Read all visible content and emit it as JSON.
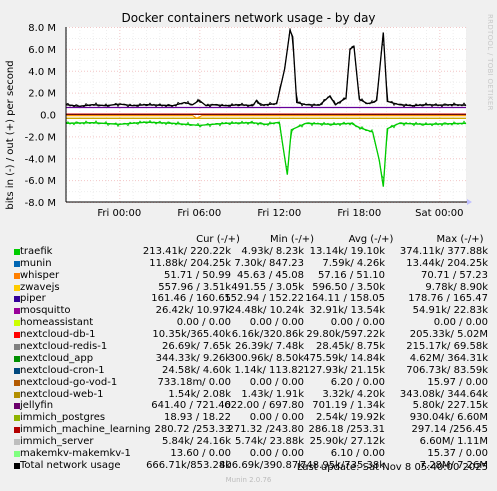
{
  "title": "Docker containers network usage - by day",
  "watermark": "RRDTOOL / TOBI OETIKER",
  "ylabel": "bits in (-) / out (+) per second",
  "chart_data": {
    "type": "line",
    "title": "Docker containers network usage - by day",
    "ylabel": "bits in (-) / out (+) per second",
    "ylim": [
      -8000000,
      8000000
    ],
    "y_ticks": [
      -8000000,
      -6000000,
      -4000000,
      -2000000,
      0,
      2000000,
      4000000,
      6000000,
      8000000
    ],
    "y_tick_labels": [
      "-8.0 M",
      "-6.0 M",
      "-4.0 M",
      "-2.0 M",
      "0.0",
      "2.0 M",
      "4.0 M",
      "6.0 M",
      "8.0 M"
    ],
    "x_range_hours": [
      4,
      34
    ],
    "x_ticks": [
      8,
      14,
      20,
      26,
      32
    ],
    "x_tick_labels": [
      "Fri 00:00",
      "Fri 06:00",
      "Fri 12:00",
      "Fri 18:00",
      "Sat 00:00"
    ],
    "grid": true,
    "series": [
      {
        "name": "Total network usage",
        "color": "#000000",
        "direction": "out",
        "points": [
          [
            4,
            0.9
          ],
          [
            5,
            0.75
          ],
          [
            6,
            0.9
          ],
          [
            7,
            0.8
          ],
          [
            8,
            0.95
          ],
          [
            9,
            0.8
          ],
          [
            10,
            0.9
          ],
          [
            11,
            0.85
          ],
          [
            12,
            0.8
          ],
          [
            12.9,
            1.1
          ],
          [
            13.5,
            0.9
          ],
          [
            14,
            1.3
          ],
          [
            14.5,
            0.8
          ],
          [
            15,
            0.9
          ],
          [
            16,
            0.8
          ],
          [
            17,
            0.9
          ],
          [
            18,
            0.8
          ],
          [
            18.3,
            1.3
          ],
          [
            18.6,
            0.85
          ],
          [
            19,
            0.9
          ],
          [
            19.8,
            1.0
          ],
          [
            20.4,
            4.2
          ],
          [
            20.8,
            7.7
          ],
          [
            21,
            7.1
          ],
          [
            21.3,
            1.1
          ],
          [
            22,
            0.9
          ],
          [
            23,
            0.85
          ],
          [
            23.8,
            1.7
          ],
          [
            24.2,
            0.9
          ],
          [
            25,
            1.5
          ],
          [
            25.3,
            6.0
          ],
          [
            25.6,
            6.2
          ],
          [
            26,
            1.4
          ],
          [
            26.6,
            1.0
          ],
          [
            27,
            1.1
          ],
          [
            27.3,
            1.3
          ],
          [
            27.8,
            7.5
          ],
          [
            28.1,
            1.2
          ],
          [
            29,
            0.9
          ],
          [
            30,
            0.8
          ],
          [
            31,
            0.9
          ],
          [
            32,
            0.85
          ],
          [
            33,
            0.9
          ],
          [
            34,
            0.85
          ]
        ]
      },
      {
        "name": "jellyfin",
        "color": "#660099",
        "direction": "out",
        "points": [
          [
            4,
            0.64
          ],
          [
            34,
            0.64
          ]
        ]
      },
      {
        "name": "nextcloud-db-1",
        "color": "#cc0000",
        "direction": "out",
        "points": [
          [
            4,
            0.03
          ],
          [
            34,
            0.03
          ]
        ]
      },
      {
        "name": "nextcloud_app",
        "color": "#00cc00",
        "direction": "in",
        "points": [
          [
            4,
            -0.8
          ],
          [
            6,
            -0.75
          ],
          [
            8,
            -0.9
          ],
          [
            10,
            -0.7
          ],
          [
            12,
            -0.8
          ],
          [
            14,
            -1.0
          ],
          [
            16,
            -0.8
          ],
          [
            18,
            -0.75
          ],
          [
            19,
            -0.9
          ],
          [
            20,
            -0.7
          ],
          [
            20.6,
            -5.5
          ],
          [
            20.9,
            -1.4
          ],
          [
            22,
            -0.8
          ],
          [
            24,
            -0.9
          ],
          [
            25.4,
            -0.8
          ],
          [
            26,
            -1.2
          ],
          [
            27,
            -1.6
          ],
          [
            27.5,
            -4.2
          ],
          [
            27.8,
            -6.6
          ],
          [
            28.1,
            -1.3
          ],
          [
            29,
            -0.8
          ],
          [
            31,
            -0.9
          ],
          [
            34,
            -0.8
          ]
        ]
      },
      {
        "name": "whisper",
        "color": "#ccaa00",
        "direction": "in",
        "points": [
          [
            4,
            -0.35
          ],
          [
            34,
            -0.35
          ]
        ]
      },
      {
        "name": "zwavejs",
        "color": "#ff9900",
        "direction": "in",
        "points": [
          [
            4,
            -0.1
          ],
          [
            13.5,
            -0.1
          ],
          [
            13.8,
            -0.35
          ],
          [
            14.2,
            -0.1
          ],
          [
            34,
            -0.1
          ]
        ]
      }
    ]
  },
  "legend": {
    "headers": [
      "Cur (-/+)",
      "Min (-/+)",
      "Avg (-/+)",
      "Max (-/+)"
    ],
    "rows": [
      {
        "name": "traefik",
        "color": "#00cc00",
        "cur": "213.41k/ 220.22k",
        "min": "4.93k/   8.23k",
        "avg": "13.14k/  19.10k",
        "max": "374.11k/ 377.88k"
      },
      {
        "name": "munin",
        "color": "#0066b3",
        "cur": "11.88k/ 204.25k",
        "min": "7.30k/ 847.23",
        "avg": "7.59k/   4.26k",
        "max": "13.44k/ 204.25k"
      },
      {
        "name": "whisper",
        "color": "#ff8000",
        "cur": "51.71 /  50.99",
        "min": "45.63 /  45.08",
        "avg": "57.16 /  51.10",
        "max": "70.71 /  57.23"
      },
      {
        "name": "zwavejs",
        "color": "#ffcc00",
        "cur": "557.96 /   3.51k",
        "min": "491.55 /   3.05k",
        "avg": "596.50 /   3.50k",
        "max": "9.78k/   8.90k"
      },
      {
        "name": "piper",
        "color": "#330099",
        "cur": "161.46 / 160.65",
        "min": "152.94 / 152.22",
        "avg": "164.11 / 158.05",
        "max": "178.76 / 165.47"
      },
      {
        "name": "mosquitto",
        "color": "#990099",
        "cur": "26.42k/  10.97k",
        "min": "24.48k/  10.24k",
        "avg": "32.91k/  13.54k",
        "max": "54.91k/  22.83k"
      },
      {
        "name": "homeassistant",
        "color": "#ccff00",
        "cur": "0.00 /   0.00",
        "min": "0.00 /   0.00",
        "avg": "0.00 /   0.00",
        "max": "0.00 /   0.00"
      },
      {
        "name": "nextcloud-db-1",
        "color": "#ff0000",
        "cur": "10.35k/365.40k",
        "min": "6.16k/320.86k",
        "avg": "29.80k/597.22k",
        "max": "205.33k/  5.02M"
      },
      {
        "name": "nextcloud-redis-1",
        "color": "#808080",
        "cur": "26.69k/   7.65k",
        "min": "26.39k/   7.48k",
        "avg": "28.45k/   8.75k",
        "max": "215.17k/  69.58k"
      },
      {
        "name": "nextcloud_app",
        "color": "#008f00",
        "cur": "344.33k/   9.26k",
        "min": "300.96k/   8.50k",
        "avg": "475.59k/  14.84k",
        "max": "4.62M/ 364.31k"
      },
      {
        "name": "nextcloud-cron-1",
        "color": "#00487d",
        "cur": "24.58k/   4.60k",
        "min": "1.14k/ 113.82",
        "avg": "127.93k/  21.15k",
        "max": "706.73k/  83.59k"
      },
      {
        "name": "nextcloud-go-vod-1",
        "color": "#b35a00",
        "cur": "733.18m/   0.00",
        "min": "0.00 /   0.00",
        "avg": "6.20 /   0.00",
        "max": "15.97 /   0.00"
      },
      {
        "name": "nextcloud-web-1",
        "color": "#b38f00",
        "cur": "1.54k/   2.08k",
        "min": "1.43k/   1.91k",
        "avg": "3.32k/   4.20k",
        "max": "343.08k/ 344.64k"
      },
      {
        "name": "jellyfin",
        "color": "#6b006b",
        "cur": "641.40 / 721.40",
        "min": "622.00 / 697.80",
        "avg": "701.19 /   1.34k",
        "max": "5.80k/ 227.15k"
      },
      {
        "name": "immich_postgres",
        "color": "#8fb300",
        "cur": "18.93 /  18.22",
        "min": "0.00 /   0.00",
        "avg": "2.54k/  19.92k",
        "max": "930.04k/   6.60M"
      },
      {
        "name": "immich_machine_learning",
        "color": "#b30000",
        "cur": "280.72 /253.33",
        "min": "271.32 /243.80",
        "avg": "286.18 /253.31",
        "max": "297.14 /256.45"
      },
      {
        "name": "immich_server",
        "color": "#bebebe",
        "cur": "5.84k/  24.16k",
        "min": "5.74k/  23.88k",
        "avg": "25.90k/  27.12k",
        "max": "6.60M/   1.11M"
      },
      {
        "name": "makemkv-makemkv-1",
        "color": "#80ff80",
        "cur": "13.60 /   0.00",
        "min": "0.00 /   0.00",
        "avg": "6.10 /   0.00",
        "max": "15.37 /   0.00"
      },
      {
        "name": "Total network usage",
        "color": "#000000",
        "cur": "666.71k/853.28k",
        "min": "406.69k/390.87k",
        "avg": "748.95k/735.38k",
        "max": "7.28M/   7.26M"
      }
    ]
  },
  "last_update": "Last update: Sat Nov  8 05:40:00 2025",
  "footer": "Munin 2.0.76"
}
